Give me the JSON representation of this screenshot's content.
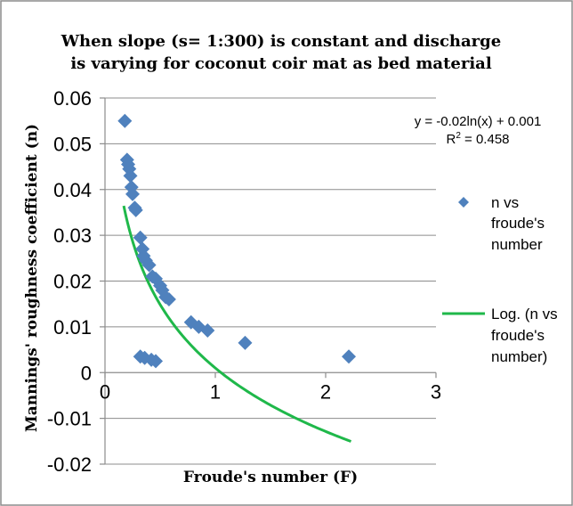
{
  "colors": {
    "marker": "#4f81bd",
    "trendline": "#1fb84a",
    "grid": "#8c8c8c",
    "axis": "#8c8c8c",
    "frame": "#8c8c8c"
  },
  "chart_data": {
    "type": "scatter",
    "title_lines": [
      "When slope (s= 1:300) is constant and discharge",
      "is varying for coconut coir mat as bed material"
    ],
    "xlabel": "Froude's number (F)",
    "ylabel": "Mannings' roughness coefficient (n)",
    "xlim": [
      0,
      3
    ],
    "ylim": [
      -0.02,
      0.06
    ],
    "x_ticks": [
      0,
      1,
      2,
      3
    ],
    "x_tick_labels": [
      "0",
      "1",
      "2",
      "3"
    ],
    "y_ticks": [
      0.06,
      0.05,
      0.04,
      0.03,
      0.02,
      0.01,
      0,
      -0.01,
      -0.02
    ],
    "y_tick_labels": [
      "0.06",
      "0.05",
      "0.04",
      "0.03",
      "0.02",
      "0.01",
      "0",
      "-0.01",
      "-0.02"
    ],
    "grid": "horizontal",
    "legend_position": "right",
    "equation": "y = -0.02ln(x) + 0.001",
    "r2_prefix": "R",
    "r2_sup": "2",
    "r2_suffix": " = 0.458",
    "series": [
      {
        "kind": "scatter",
        "legend_lines": [
          "n vs",
          "froude's",
          "number"
        ],
        "points": [
          [
            0.18,
            0.055
          ],
          [
            0.2,
            0.0465
          ],
          [
            0.21,
            0.0455
          ],
          [
            0.22,
            0.0445
          ],
          [
            0.23,
            0.043
          ],
          [
            0.24,
            0.0405
          ],
          [
            0.25,
            0.039
          ],
          [
            0.27,
            0.036
          ],
          [
            0.28,
            0.0355
          ],
          [
            0.32,
            0.0295
          ],
          [
            0.34,
            0.027
          ],
          [
            0.35,
            0.0255
          ],
          [
            0.37,
            0.0245
          ],
          [
            0.4,
            0.0235
          ],
          [
            0.43,
            0.021
          ],
          [
            0.46,
            0.0205
          ],
          [
            0.5,
            0.019
          ],
          [
            0.52,
            0.018
          ],
          [
            0.55,
            0.0165
          ],
          [
            0.58,
            0.016
          ],
          [
            0.78,
            0.011
          ],
          [
            0.85,
            0.01
          ],
          [
            0.93,
            0.0092
          ],
          [
            1.27,
            0.0065
          ],
          [
            2.21,
            0.0035
          ],
          [
            0.32,
            0.0035
          ],
          [
            0.36,
            0.0032
          ],
          [
            0.42,
            0.0028
          ],
          [
            0.46,
            0.0025
          ]
        ]
      },
      {
        "kind": "trendline",
        "legend_lines": [
          "Log. (n vs",
          "froude's",
          "number)"
        ],
        "a": -0.02,
        "b": 0.001,
        "x_start": 0.17,
        "x_end": 2.23
      }
    ]
  }
}
